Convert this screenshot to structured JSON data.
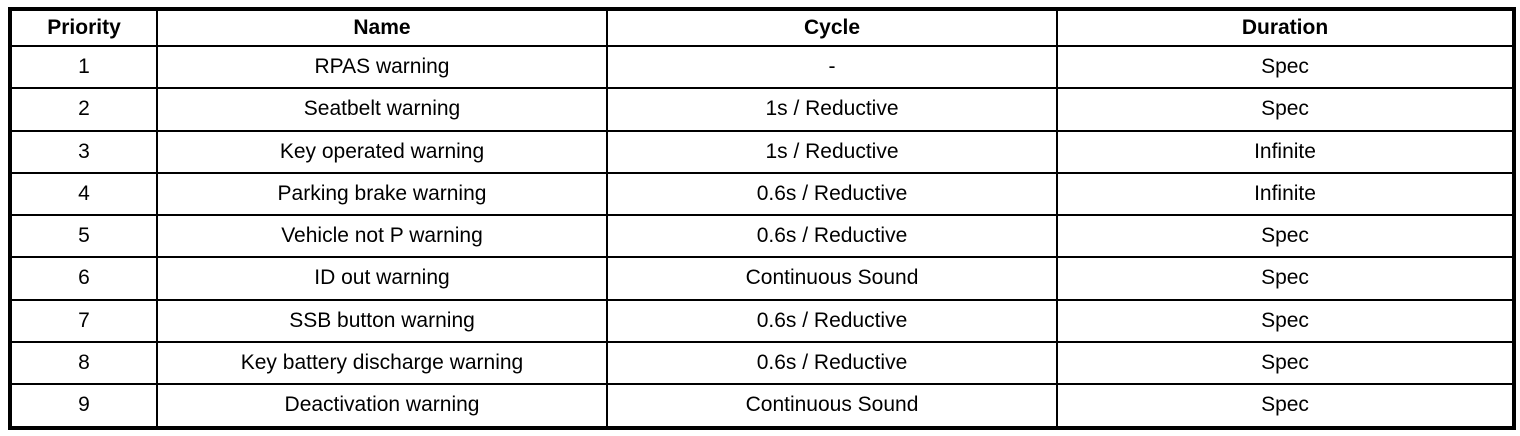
{
  "table": {
    "columns": {
      "priority": "Priority",
      "name": "Name",
      "cycle": "Cycle",
      "duration": "Duration"
    },
    "rows": [
      {
        "priority": "1",
        "name": "RPAS warning",
        "cycle": "-",
        "duration": "Spec"
      },
      {
        "priority": "2",
        "name": "Seatbelt warning",
        "cycle": "1s / Reductive",
        "duration": "Spec"
      },
      {
        "priority": "3",
        "name": "Key operated warning",
        "cycle": "1s / Reductive",
        "duration": "Infinite"
      },
      {
        "priority": "4",
        "name": "Parking brake warning",
        "cycle": "0.6s / Reductive",
        "duration": "Infinite"
      },
      {
        "priority": "5",
        "name": "Vehicle not P warning",
        "cycle": "0.6s / Reductive",
        "duration": "Spec"
      },
      {
        "priority": "6",
        "name": "ID out warning",
        "cycle": "Continuous Sound",
        "duration": "Spec"
      },
      {
        "priority": "7",
        "name": "SSB button warning",
        "cycle": "0.6s / Reductive",
        "duration": "Spec"
      },
      {
        "priority": "8",
        "name": "Key battery discharge warning",
        "cycle": "0.6s / Reductive",
        "duration": "Spec"
      },
      {
        "priority": "9",
        "name": "Deactivation warning",
        "cycle": "Continuous Sound",
        "duration": "Spec"
      }
    ],
    "colors": {
      "border": "#000000",
      "background": "#ffffff",
      "text": "#000000"
    }
  }
}
